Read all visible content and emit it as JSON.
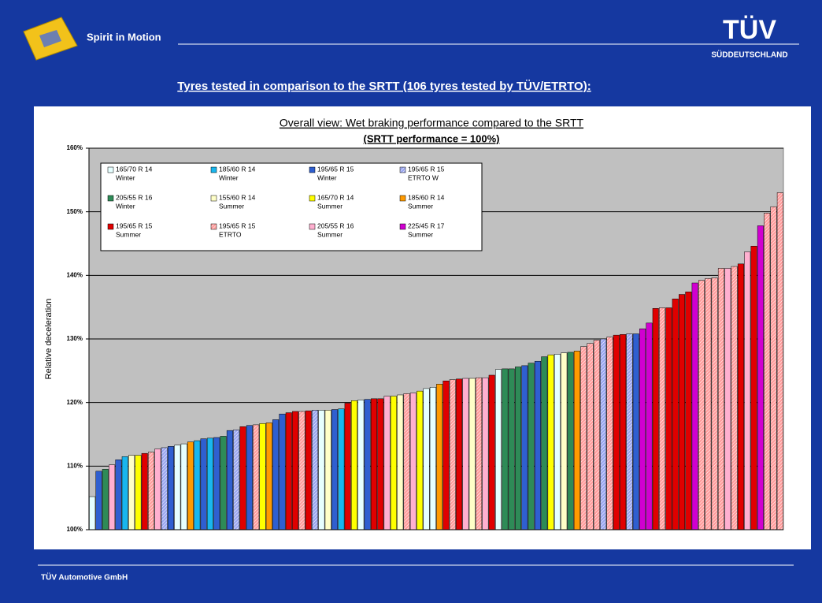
{
  "header": {
    "brand": "Spirit in Motion",
    "logo": "TÜV",
    "logo_sub": "SÜDDEUTSCHLAND",
    "heading": "Tyres tested in comparison to the SRTT (106 tyres tested by TÜV/ETRTO):"
  },
  "footer": "TÜV Automotive GmbH",
  "chart_data": {
    "type": "bar",
    "title": "Overall view:  Wet braking performance compared to the SRTT",
    "subtitle": "(SRTT performance = 100%)",
    "y_label": "Relative deceleration",
    "ylim": [
      100,
      160
    ],
    "yticks": [
      {
        "value": 100,
        "label": "100%"
      },
      {
        "value": 110,
        "label": "110%"
      },
      {
        "value": 120,
        "label": "120%"
      },
      {
        "value": 130,
        "label": "130%"
      },
      {
        "value": 140,
        "label": "140%"
      },
      {
        "value": 150,
        "label": "150%"
      },
      {
        "value": 160,
        "label": "160%"
      }
    ],
    "grid": true,
    "legend": [
      {
        "size": "165/70 R 14",
        "kind": "Winter",
        "color": "#e6ffff",
        "hatched": false
      },
      {
        "size": "185/60 R 14",
        "kind": "Winter",
        "color": "#19b6ee",
        "hatched": false
      },
      {
        "size": "195/65 R 15",
        "kind": "Winter",
        "color": "#2f5fd0",
        "hatched": false
      },
      {
        "size": "195/65 R 15",
        "kind": "ETRTO W",
        "color": "#9aa6f0",
        "hatched": true
      },
      {
        "size": "205/55 R 16",
        "kind": "Winter",
        "color": "#2e8b57",
        "hatched": false
      },
      {
        "size": "155/60 R 14",
        "kind": "Summer",
        "color": "#ffffc8",
        "hatched": false
      },
      {
        "size": "165/70 R 14",
        "kind": "Summer",
        "color": "#ffff00",
        "hatched": false
      },
      {
        "size": "185/60 R 14",
        "kind": "Summer",
        "color": "#ff9a00",
        "hatched": false
      },
      {
        "size": "195/65 R 15",
        "kind": "Summer",
        "color": "#e00000",
        "hatched": false
      },
      {
        "size": "195/65 R 15",
        "kind": "ETRTO",
        "color": "#ff9c9c",
        "hatched": true
      },
      {
        "size": "205/55 R 16",
        "kind": "Summer",
        "color": "#ffb0d0",
        "hatched": false
      },
      {
        "size": "225/45 R 17",
        "kind": "Summer",
        "color": "#d000d0",
        "hatched": false
      }
    ],
    "values": [
      105.2,
      109.2,
      109.5,
      110.2,
      111,
      111.5,
      111.7,
      111.7,
      112,
      112.2,
      112.7,
      112.9,
      113.1,
      113.3,
      113.5,
      113.8,
      114,
      114.3,
      114.4,
      114.5,
      114.7,
      115.6,
      115.7,
      116.2,
      116.4,
      116.5,
      116.7,
      116.8,
      117.3,
      118.2,
      118.4,
      118.6,
      118.6,
      118.7,
      118.8,
      118.8,
      118.8,
      118.9,
      119,
      119.9,
      120.3,
      120.4,
      120.5,
      120.6,
      120.6,
      121,
      121,
      121.2,
      121.4,
      121.5,
      121.8,
      122.2,
      122.4,
      122.9,
      123.4,
      123.6,
      123.7,
      123.8,
      123.8,
      123.9,
      123.9,
      124.3,
      125.2,
      125.3,
      125.3,
      125.6,
      125.8,
      126.2,
      126.5,
      127.2,
      127.5,
      127.6,
      127.8,
      127.9,
      128.1,
      128.8,
      129.3,
      129.8,
      130,
      130.3,
      130.6,
      130.7,
      130.8,
      130.8,
      131.6,
      132.5,
      134.8,
      134.9,
      134.9,
      136.3,
      137,
      137.4,
      138.8,
      139.2,
      139.5,
      139.6,
      141.1,
      141.1,
      141.4,
      141.8,
      143.7,
      144.6,
      147.8,
      149.8,
      150.8,
      153
    ],
    "groups": [
      0,
      2,
      4,
      10,
      2,
      1,
      5,
      6,
      8,
      9,
      10,
      3,
      2,
      0,
      0,
      7,
      1,
      2,
      1,
      2,
      4,
      2,
      3,
      8,
      2,
      9,
      6,
      7,
      2,
      2,
      8,
      8,
      9,
      8,
      3,
      0,
      5,
      2,
      1,
      8,
      6,
      0,
      2,
      8,
      8,
      10,
      6,
      5,
      9,
      10,
      6,
      0,
      0,
      7,
      8,
      9,
      8,
      10,
      5,
      9,
      10,
      8,
      0,
      4,
      4,
      4,
      2,
      4,
      2,
      4,
      6,
      0,
      5,
      4,
      7,
      9,
      9,
      9,
      3,
      9,
      8,
      8,
      3,
      2,
      11,
      11,
      8,
      9,
      8,
      8,
      8,
      8,
      11,
      9,
      9,
      9,
      9,
      10,
      9,
      8,
      10,
      8,
      11,
      9,
      9,
      9
    ]
  }
}
